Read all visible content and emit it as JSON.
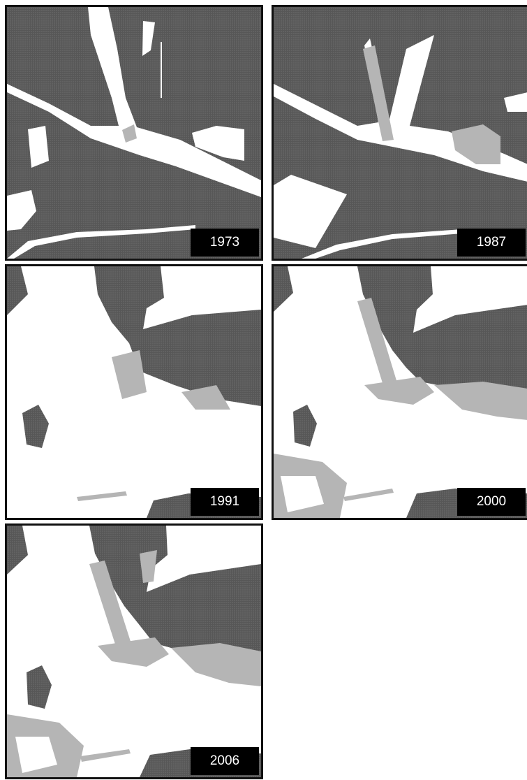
{
  "panels": [
    {
      "id": "p1973",
      "year": "1973"
    },
    {
      "id": "p1987",
      "year": "1987"
    },
    {
      "id": "p1991",
      "year": "1991"
    },
    {
      "id": "p2000",
      "year": "2000"
    },
    {
      "id": "p2006",
      "year": "2006"
    }
  ],
  "legend_colors": {
    "land": "#5f5f5f",
    "water": "#ffffff",
    "transition": "#b5b5b5",
    "frame": "#111111"
  }
}
